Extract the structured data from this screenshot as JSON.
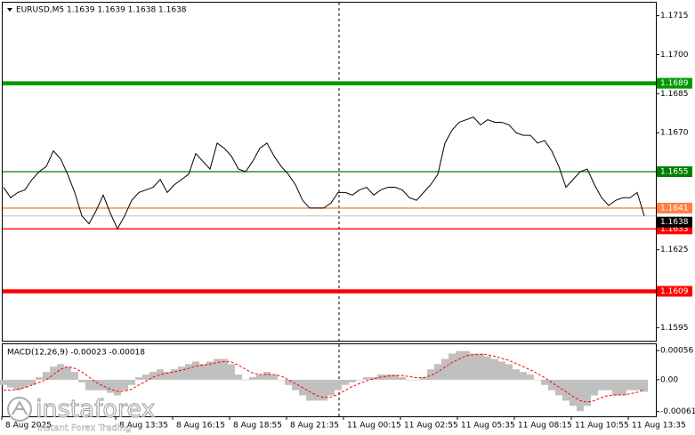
{
  "chart_data": [
    {
      "type": "line",
      "title": "EURUSD,M5  1.1639 1.1639 1.1638 1.1638",
      "color": "#000000",
      "values": [
        1.1649,
        1.1645,
        1.1647,
        1.1648,
        1.1652,
        1.1655,
        1.1657,
        1.1663,
        1.166,
        1.1654,
        1.1647,
        1.1638,
        1.1635,
        1.164,
        1.1646,
        1.1639,
        1.1633,
        1.1638,
        1.1644,
        1.1647,
        1.1648,
        1.1649,
        1.1652,
        1.1647,
        1.165,
        1.1652,
        1.1654,
        1.1662,
        1.1659,
        1.1656,
        1.1666,
        1.1664,
        1.1661,
        1.1656,
        1.1655,
        1.1659,
        1.1664,
        1.1666,
        1.1661,
        1.1657,
        1.1654,
        1.165,
        1.1644,
        1.1641,
        1.1641,
        1.1641,
        1.1643,
        1.1647,
        1.1647,
        1.1646,
        1.1648,
        1.1649,
        1.1646,
        1.1648,
        1.1649,
        1.1649,
        1.1648,
        1.1645,
        1.1644,
        1.1647,
        1.165,
        1.1654,
        1.1666,
        1.1671,
        1.1674,
        1.1675,
        1.1676,
        1.1673,
        1.1675,
        1.1674,
        1.1674,
        1.1673,
        1.167,
        1.1669,
        1.1669,
        1.1666,
        1.1667,
        1.1663,
        1.1657,
        1.1649,
        1.1652,
        1.1655,
        1.1656,
        1.165,
        1.1645,
        1.1642,
        1.1644,
        1.1645,
        1.1645,
        1.1647,
        1.1638
      ],
      "ylim": [
        1.159,
        1.172
      ],
      "yticks": [
        1.1715,
        {
          "value": 1.17,
          "label": "1.1700"
        },
        1.1685,
        {
          "value": 1.167,
          "label": "1.1670"
        },
        1.1625,
        1.1595
      ],
      "levels": [
        {
          "value": 1.1689,
          "color": "#009900"
        },
        {
          "value": 1.1655,
          "color": "#008000"
        },
        {
          "value": 1.1641,
          "color": "#ff8040"
        },
        {
          "value": 1.1633,
          "color": "#ff0000"
        },
        {
          "value": 1.1609,
          "color": "#ff0000"
        }
      ],
      "last_price": 1.1638
    },
    {
      "type": "histogram",
      "title": "MACD(12,26,9) -0.00023 -0.00018",
      "categories": [
        "8 Aug 2025",
        null,
        null,
        null,
        null,
        null,
        null,
        null,
        null,
        null,
        null,
        null,
        null,
        null,
        null,
        null,
        "8 Aug 13:35",
        null,
        null,
        null,
        null,
        null,
        null,
        null,
        "8 Aug 16:15",
        null,
        null,
        null,
        null,
        null,
        null,
        null,
        "8 Aug 18:55",
        null,
        null,
        null,
        null,
        null,
        null,
        null,
        "8 Aug 21:35",
        null,
        null,
        null,
        null,
        null,
        null,
        null,
        "11 Aug 00:15",
        null,
        null,
        null,
        null,
        null,
        null,
        null,
        "11 Aug 02:55",
        null,
        null,
        null,
        null,
        null,
        null,
        null,
        "11 Aug 05:35",
        null,
        null,
        null,
        null,
        null,
        null,
        null,
        "11 Aug 08:15",
        null,
        null,
        null,
        null,
        null,
        null,
        null,
        "11 Aug 10:55",
        null,
        null,
        null,
        null,
        null,
        null,
        null,
        "11 Aug 13:35",
        null,
        null
      ],
      "series": [
        {
          "color": "#c0c0c0",
          "values": [
            -0.0001,
            -0.00015,
            -0.0002,
            -0.00015,
            -0.0001,
            5e-05,
            0.00015,
            0.00025,
            0.0003,
            0.00025,
            0.00015,
            -5e-05,
            -0.0002,
            -0.0002,
            -0.0002,
            -0.00025,
            -0.0003,
            -0.0002,
            -0.0001,
            5e-05,
            0.0001,
            0.00015,
            0.0002,
            0.00015,
            0.0002,
            0.00025,
            0.0003,
            0.00035,
            0.0003,
            0.00035,
            0.0004,
            0.0004,
            0.0003,
            0.0001,
            0,
            5e-05,
            0.0001,
            0.00015,
            0.0001,
            0,
            -0.0001,
            -0.0002,
            -0.0003,
            -0.0004,
            -0.0004,
            -0.0004,
            -0.0003,
            -0.0002,
            -0.0001,
            -5e-05,
            0,
            5e-05,
            5e-05,
            0.0001,
            0.0001,
            0.0001,
            5e-05,
            0,
            0,
            5e-05,
            0.0002,
            0.0003,
            0.0004,
            0.0005,
            0.00055,
            0.00055,
            0.0005,
            0.0005,
            0.00045,
            0.0004,
            0.00035,
            0.0003,
            0.0002,
            0.00015,
            0.0001,
            0,
            -0.0001,
            -0.0002,
            -0.0003,
            -0.0004,
            -0.0005,
            -0.0006,
            -0.0005,
            -0.0003,
            -0.0002,
            -0.0002,
            -0.0003,
            -0.0003,
            -0.0002,
            -0.0002,
            -0.00023
          ]
        },
        {
          "color": "#ff0000",
          "values": [
            -0.0002,
            -0.0002,
            -0.00018,
            -0.00015,
            -0.0001,
            -5e-05,
            0,
            0.0001,
            0.0002,
            0.00025,
            0.00022,
            0.00015,
            5e-05,
            -5e-05,
            -0.00012,
            -0.00018,
            -0.00022,
            -0.00022,
            -0.00018,
            -0.0001,
            -3e-05,
            5e-05,
            0.0001,
            0.00013,
            0.00015,
            0.00018,
            0.00022,
            0.00026,
            0.00028,
            0.0003,
            0.00033,
            0.00035,
            0.00034,
            0.00028,
            0.0002,
            0.00013,
            0.0001,
            0.0001,
            0.0001,
            7e-05,
            0,
            -7e-05,
            -0.00015,
            -0.00023,
            -0.0003,
            -0.00034,
            -0.00033,
            -0.00028,
            -0.0002,
            -0.00013,
            -7e-05,
            -2e-05,
            2e-05,
            5e-05,
            7e-05,
            8e-05,
            8e-05,
            6e-05,
            4e-05,
            4e-05,
            8e-05,
            0.00015,
            0.00024,
            0.00033,
            0.0004,
            0.00046,
            0.00048,
            0.00049,
            0.00048,
            0.00045,
            0.00041,
            0.00037,
            0.00031,
            0.00025,
            0.00019,
            0.00012,
            4e-05,
            -5e-05,
            -0.00014,
            -0.00023,
            -0.00032,
            -0.0004,
            -0.00043,
            -0.0004,
            -0.00034,
            -0.0003,
            -0.00029,
            -0.00029,
            -0.00027,
            -0.00024,
            -0.00018
          ]
        }
      ],
      "ylim": [
        -0.0007,
        0.00068
      ],
      "yticks": [
        0.00056,
        {
          "value": 0,
          "label": "0.00"
        },
        -0.00061
      ]
    }
  ],
  "watermark": {
    "brand": "instaforex",
    "tagline": "Instant Forex Trading"
  }
}
